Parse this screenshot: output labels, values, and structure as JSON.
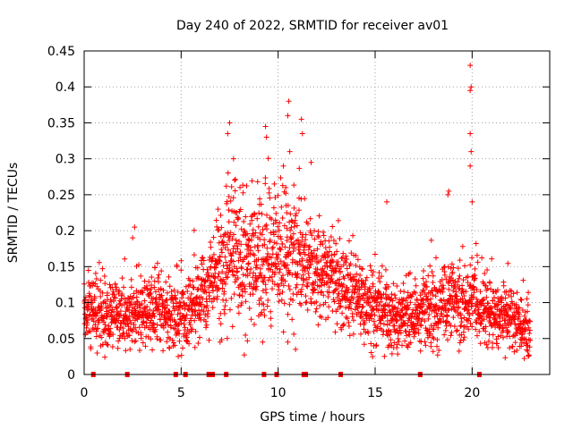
{
  "chart_data": {
    "type": "scatter",
    "title": "Day 240 of 2022, SRMTID for receiver av01",
    "xlabel": "GPS time / hours",
    "ylabel": "SRMTID / TECUs",
    "xlim": [
      0,
      24
    ],
    "ylim": [
      0,
      0.45
    ],
    "xticks": [
      0,
      5,
      10,
      15,
      20
    ],
    "xtick_labels": [
      "0",
      "5",
      "10",
      "15",
      "20"
    ],
    "yticks": [
      0,
      0.05,
      0.1,
      0.15,
      0.2,
      0.25,
      0.3,
      0.35,
      0.4,
      0.45
    ],
    "ytick_labels": [
      "0",
      "0.05",
      "0.1",
      "0.15",
      "0.2",
      "0.25",
      "0.3",
      "0.35",
      "0.4",
      "0.45"
    ],
    "grid": true,
    "marker": "+",
    "color": "#ff0000",
    "point_count": 2600,
    "data_time_range": [
      0,
      23
    ],
    "baseline_envelope": {
      "hours": [
        0,
        1,
        2,
        3,
        4,
        5,
        6,
        7,
        8,
        9,
        10,
        11,
        12,
        13,
        14,
        15,
        16,
        17,
        18,
        19,
        20,
        21,
        22,
        23
      ],
      "mean": [
        0.085,
        0.085,
        0.08,
        0.085,
        0.09,
        0.085,
        0.1,
        0.16,
        0.17,
        0.15,
        0.17,
        0.16,
        0.15,
        0.13,
        0.11,
        0.09,
        0.08,
        0.08,
        0.09,
        0.1,
        0.1,
        0.085,
        0.08,
        0.06
      ],
      "spread": [
        0.04,
        0.035,
        0.03,
        0.035,
        0.035,
        0.035,
        0.04,
        0.07,
        0.07,
        0.06,
        0.07,
        0.06,
        0.05,
        0.045,
        0.04,
        0.035,
        0.03,
        0.03,
        0.04,
        0.04,
        0.035,
        0.035,
        0.035,
        0.03
      ]
    },
    "highlights": [
      {
        "x": 19.9,
        "y": 0.43
      },
      {
        "x": 19.95,
        "y": 0.4
      },
      {
        "x": 19.9,
        "y": 0.395
      },
      {
        "x": 19.9,
        "y": 0.335
      },
      {
        "x": 19.95,
        "y": 0.31
      },
      {
        "x": 19.9,
        "y": 0.29
      },
      {
        "x": 10.55,
        "y": 0.38
      },
      {
        "x": 10.5,
        "y": 0.36
      },
      {
        "x": 11.2,
        "y": 0.355
      },
      {
        "x": 11.25,
        "y": 0.335
      },
      {
        "x": 7.5,
        "y": 0.35
      },
      {
        "x": 7.4,
        "y": 0.335
      },
      {
        "x": 9.35,
        "y": 0.345
      },
      {
        "x": 9.4,
        "y": 0.33
      },
      {
        "x": 10.6,
        "y": 0.31
      },
      {
        "x": 7.7,
        "y": 0.3
      },
      {
        "x": 11.7,
        "y": 0.295
      },
      {
        "x": 18.8,
        "y": 0.255
      },
      {
        "x": 18.75,
        "y": 0.25
      },
      {
        "x": 15.6,
        "y": 0.24
      },
      {
        "x": 20.0,
        "y": 0.24
      },
      {
        "x": 2.6,
        "y": 0.205
      },
      {
        "x": 2.5,
        "y": 0.19
      },
      {
        "x": 10.9,
        "y": 0.035
      },
      {
        "x": 9.2,
        "y": 0.045
      },
      {
        "x": 10.5,
        "y": 0.045
      }
    ],
    "gap_markers_x": [
      0.45,
      2.2,
      4.7,
      5.2,
      6.4,
      6.6,
      7.3,
      9.25,
      9.9,
      11.3,
      11.4,
      13.2,
      17.3,
      20.35
    ]
  }
}
